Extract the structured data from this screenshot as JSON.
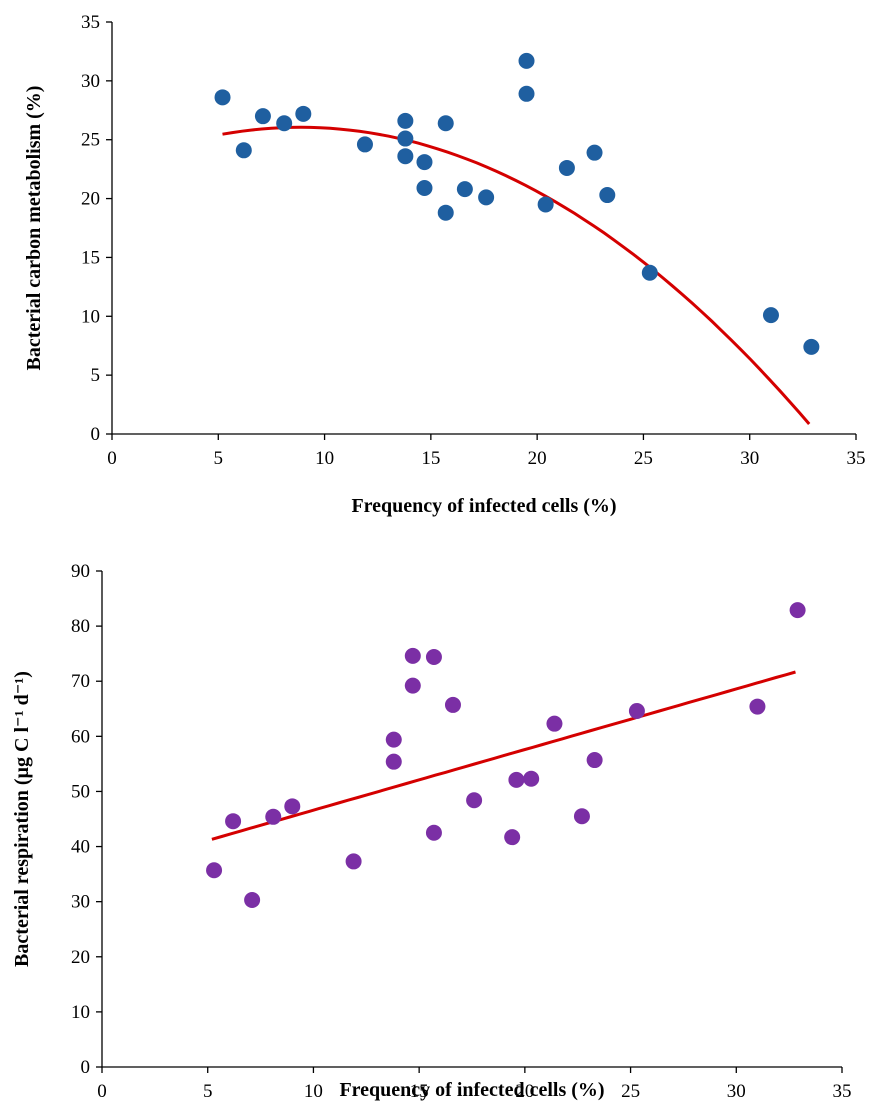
{
  "chart_data": [
    {
      "type": "scatter",
      "xlabel": "Frequency  of infected cells (%)",
      "ylabel": "Bacterial carbon  metabolism  (%)",
      "xlim": [
        0,
        35
      ],
      "ylim": [
        0,
        35
      ],
      "xticks": [
        0,
        5,
        10,
        15,
        20,
        25,
        30,
        35
      ],
      "yticks": [
        0,
        5,
        10,
        15,
        20,
        25,
        30,
        35
      ],
      "grid": false,
      "marker_color": "#1f5fa0",
      "trend_color": "#d40000",
      "trendline": {
        "kind": "polynomial-2",
        "coefficients": [
          22.6,
          0.78,
          -0.044
        ],
        "x_range": [
          5.2,
          32.8
        ]
      },
      "series": [
        {
          "points": [
            [
              5.2,
              28.6
            ],
            [
              6.2,
              24.1
            ],
            [
              7.1,
              27.0
            ],
            [
              8.1,
              26.4
            ],
            [
              9.0,
              27.2
            ],
            [
              11.9,
              24.6
            ],
            [
              13.8,
              26.6
            ],
            [
              13.8,
              25.1
            ],
            [
              13.8,
              23.6
            ],
            [
              14.7,
              23.1
            ],
            [
              14.7,
              20.9
            ],
            [
              15.7,
              26.4
            ],
            [
              15.7,
              18.8
            ],
            [
              16.6,
              20.8
            ],
            [
              17.6,
              20.1
            ],
            [
              19.5,
              31.7
            ],
            [
              19.5,
              28.9
            ],
            [
              20.4,
              19.5
            ],
            [
              21.4,
              22.6
            ],
            [
              22.7,
              23.9
            ],
            [
              23.3,
              20.3
            ],
            [
              25.3,
              13.7
            ],
            [
              31.0,
              10.1
            ],
            [
              32.9,
              7.4
            ]
          ]
        }
      ]
    },
    {
      "type": "scatter",
      "xlabel": "Frequency  of infected cells (%)",
      "ylabel": "Bacterial respiration  (µg C l⁻¹ d⁻¹)",
      "xlim": [
        0,
        35
      ],
      "ylim": [
        0,
        90
      ],
      "xticks": [
        0,
        5,
        10,
        15,
        20,
        25,
        30,
        35
      ],
      "yticks": [
        0,
        10,
        20,
        30,
        40,
        50,
        60,
        70,
        80,
        90
      ],
      "grid": false,
      "marker_color": "#7b2fa5",
      "trend_color": "#d40000",
      "trendline": {
        "kind": "linear",
        "coefficients": [
          35.6,
          1.1
        ],
        "x_range": [
          5.2,
          32.8
        ]
      },
      "series": [
        {
          "points": [
            [
              5.3,
              35.7
            ],
            [
              6.2,
              44.6
            ],
            [
              7.1,
              30.3
            ],
            [
              8.1,
              45.4
            ],
            [
              9.0,
              47.3
            ],
            [
              11.9,
              37.3
            ],
            [
              13.8,
              59.4
            ],
            [
              13.8,
              55.4
            ],
            [
              14.7,
              74.6
            ],
            [
              14.7,
              69.2
            ],
            [
              15.7,
              74.4
            ],
            [
              15.7,
              42.5
            ],
            [
              16.6,
              65.7
            ],
            [
              17.6,
              48.4
            ],
            [
              19.4,
              41.7
            ],
            [
              19.6,
              52.1
            ],
            [
              20.3,
              52.3
            ],
            [
              21.4,
              62.3
            ],
            [
              22.7,
              45.5
            ],
            [
              23.3,
              55.7
            ],
            [
              25.3,
              64.6
            ],
            [
              31.0,
              65.4
            ],
            [
              32.9,
              82.9
            ]
          ]
        }
      ]
    }
  ]
}
